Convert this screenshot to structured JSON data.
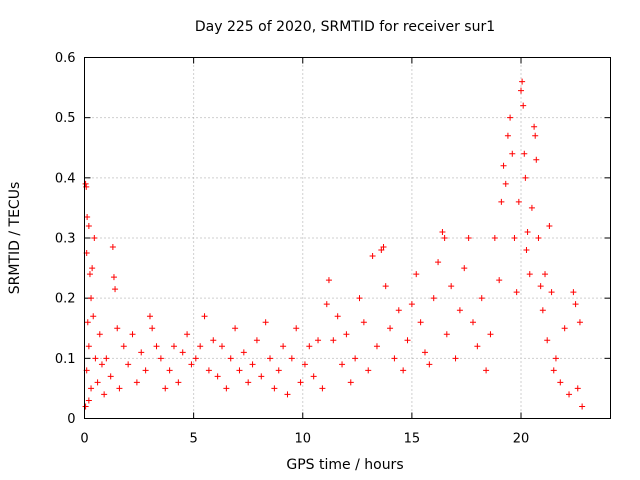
{
  "chart_data": {
    "type": "scatter",
    "title": "Day 225 of 2020, SRMTID for receiver sur1",
    "xlabel": "GPS time / hours",
    "ylabel": "SRMTID / TECUs",
    "xlim": [
      0,
      24.1
    ],
    "ylim": [
      0,
      0.6
    ],
    "xticks": [
      0,
      5,
      10,
      15,
      20
    ],
    "yticks": [
      0,
      0.1,
      0.2,
      0.3,
      0.4,
      0.5,
      0.6
    ],
    "xtick_labels": [
      "0",
      "5",
      "10",
      "15",
      "20"
    ],
    "ytick_labels": [
      "0",
      "0.1",
      "0.2",
      "0.3",
      "0.4",
      "0.5",
      "0.6"
    ],
    "grid": true,
    "marker": "+",
    "series_color": "#ff0000",
    "series": [
      {
        "name": "SRMTID",
        "points": [
          [
            0.05,
            0.39
          ],
          [
            0.08,
            0.385
          ],
          [
            0.1,
            0.275
          ],
          [
            0.12,
            0.335
          ],
          [
            0.2,
            0.32
          ],
          [
            0.25,
            0.24
          ],
          [
            0.35,
            0.25
          ],
          [
            0.45,
            0.3
          ],
          [
            0.3,
            0.2
          ],
          [
            0.15,
            0.16
          ],
          [
            0.2,
            0.12
          ],
          [
            0.4,
            0.17
          ],
          [
            0.5,
            0.1
          ],
          [
            0.1,
            0.08
          ],
          [
            0.3,
            0.05
          ],
          [
            0.05,
            0.02
          ],
          [
            0.2,
            0.03
          ],
          [
            0.6,
            0.06
          ],
          [
            0.7,
            0.14
          ],
          [
            0.8,
            0.09
          ],
          [
            0.9,
            0.04
          ],
          [
            1.0,
            0.1
          ],
          [
            1.2,
            0.07
          ],
          [
            1.3,
            0.285
          ],
          [
            1.35,
            0.235
          ],
          [
            1.4,
            0.215
          ],
          [
            1.5,
            0.15
          ],
          [
            1.6,
            0.05
          ],
          [
            1.8,
            0.12
          ],
          [
            2.0,
            0.09
          ],
          [
            2.2,
            0.14
          ],
          [
            2.4,
            0.06
          ],
          [
            2.6,
            0.11
          ],
          [
            2.8,
            0.08
          ],
          [
            3.0,
            0.17
          ],
          [
            3.1,
            0.15
          ],
          [
            3.3,
            0.12
          ],
          [
            3.5,
            0.1
          ],
          [
            3.7,
            0.05
          ],
          [
            3.9,
            0.08
          ],
          [
            4.1,
            0.12
          ],
          [
            4.3,
            0.06
          ],
          [
            4.5,
            0.11
          ],
          [
            4.7,
            0.14
          ],
          [
            4.9,
            0.09
          ],
          [
            5.1,
            0.1
          ],
          [
            5.3,
            0.12
          ],
          [
            5.5,
            0.17
          ],
          [
            5.7,
            0.08
          ],
          [
            5.9,
            0.13
          ],
          [
            6.1,
            0.07
          ],
          [
            6.3,
            0.12
          ],
          [
            6.5,
            0.05
          ],
          [
            6.7,
            0.1
          ],
          [
            6.9,
            0.15
          ],
          [
            7.1,
            0.08
          ],
          [
            7.3,
            0.11
          ],
          [
            7.5,
            0.06
          ],
          [
            7.7,
            0.09
          ],
          [
            7.9,
            0.13
          ],
          [
            8.1,
            0.07
          ],
          [
            8.3,
            0.16
          ],
          [
            8.5,
            0.1
          ],
          [
            8.7,
            0.05
          ],
          [
            8.9,
            0.08
          ],
          [
            9.1,
            0.12
          ],
          [
            9.3,
            0.04
          ],
          [
            9.5,
            0.1
          ],
          [
            9.7,
            0.15
          ],
          [
            9.9,
            0.06
          ],
          [
            10.1,
            0.09
          ],
          [
            10.3,
            0.12
          ],
          [
            10.5,
            0.07
          ],
          [
            10.7,
            0.13
          ],
          [
            10.9,
            0.05
          ],
          [
            11.1,
            0.19
          ],
          [
            11.2,
            0.23
          ],
          [
            11.4,
            0.13
          ],
          [
            11.6,
            0.17
          ],
          [
            11.8,
            0.09
          ],
          [
            12.0,
            0.14
          ],
          [
            12.2,
            0.06
          ],
          [
            12.4,
            0.1
          ],
          [
            12.6,
            0.2
          ],
          [
            12.8,
            0.16
          ],
          [
            13.0,
            0.08
          ],
          [
            13.2,
            0.27
          ],
          [
            13.4,
            0.12
          ],
          [
            13.6,
            0.28
          ],
          [
            13.7,
            0.285
          ],
          [
            13.8,
            0.22
          ],
          [
            14.0,
            0.15
          ],
          [
            14.2,
            0.1
          ],
          [
            14.4,
            0.18
          ],
          [
            14.6,
            0.08
          ],
          [
            14.8,
            0.13
          ],
          [
            15.0,
            0.19
          ],
          [
            15.2,
            0.24
          ],
          [
            15.4,
            0.16
          ],
          [
            15.6,
            0.11
          ],
          [
            15.8,
            0.09
          ],
          [
            16.0,
            0.2
          ],
          [
            16.2,
            0.26
          ],
          [
            16.4,
            0.31
          ],
          [
            16.5,
            0.3
          ],
          [
            16.6,
            0.14
          ],
          [
            16.8,
            0.22
          ],
          [
            17.0,
            0.1
          ],
          [
            17.2,
            0.18
          ],
          [
            17.4,
            0.25
          ],
          [
            17.6,
            0.3
          ],
          [
            17.8,
            0.16
          ],
          [
            18.0,
            0.12
          ],
          [
            18.2,
            0.2
          ],
          [
            18.4,
            0.08
          ],
          [
            18.6,
            0.14
          ],
          [
            18.8,
            0.3
          ],
          [
            19.0,
            0.23
          ],
          [
            19.1,
            0.36
          ],
          [
            19.2,
            0.42
          ],
          [
            19.3,
            0.39
          ],
          [
            19.4,
            0.47
          ],
          [
            19.5,
            0.5
          ],
          [
            19.6,
            0.44
          ],
          [
            19.7,
            0.3
          ],
          [
            19.8,
            0.21
          ],
          [
            19.9,
            0.36
          ],
          [
            20.0,
            0.545
          ],
          [
            20.05,
            0.56
          ],
          [
            20.1,
            0.52
          ],
          [
            20.15,
            0.44
          ],
          [
            20.2,
            0.4
          ],
          [
            20.25,
            0.28
          ],
          [
            20.3,
            0.31
          ],
          [
            20.4,
            0.24
          ],
          [
            20.5,
            0.35
          ],
          [
            20.6,
            0.485
          ],
          [
            20.65,
            0.47
          ],
          [
            20.7,
            0.43
          ],
          [
            20.8,
            0.3
          ],
          [
            20.9,
            0.22
          ],
          [
            21.0,
            0.18
          ],
          [
            21.1,
            0.24
          ],
          [
            21.2,
            0.13
          ],
          [
            21.3,
            0.32
          ],
          [
            21.4,
            0.21
          ],
          [
            21.5,
            0.08
          ],
          [
            21.6,
            0.1
          ],
          [
            21.8,
            0.06
          ],
          [
            22.0,
            0.15
          ],
          [
            22.2,
            0.04
          ],
          [
            22.4,
            0.21
          ],
          [
            22.5,
            0.19
          ],
          [
            22.6,
            0.05
          ],
          [
            22.7,
            0.16
          ],
          [
            22.8,
            0.02
          ]
        ]
      }
    ]
  }
}
